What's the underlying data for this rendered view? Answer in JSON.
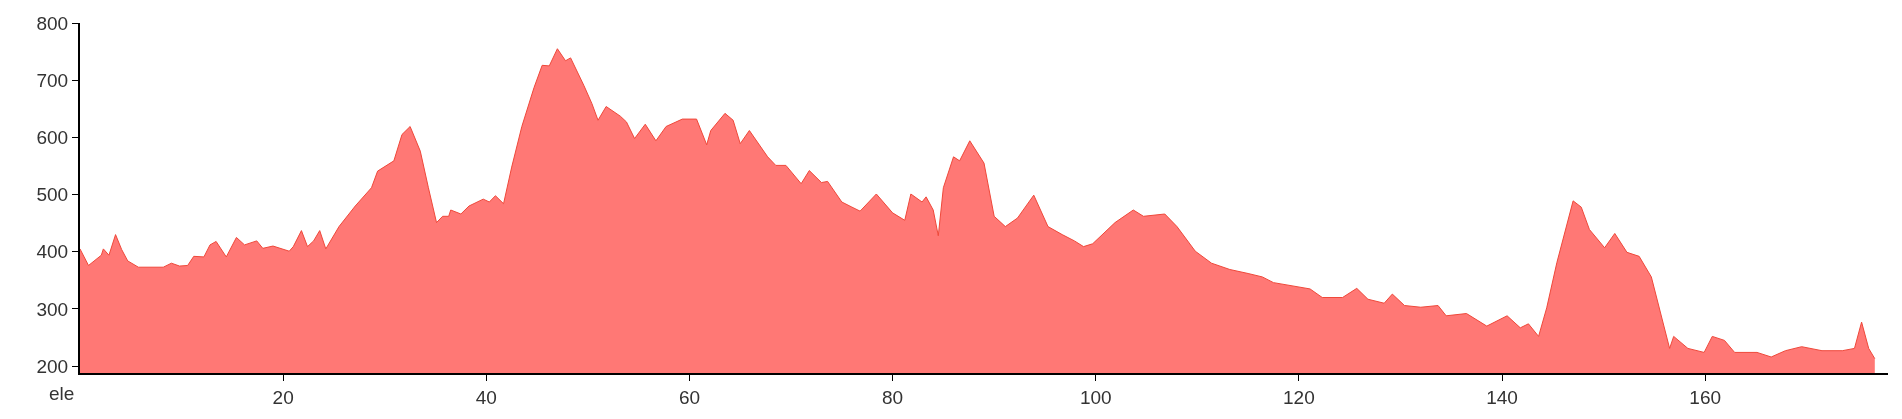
{
  "chart_data": {
    "type": "area",
    "ylabel": "ele",
    "x": [
      0,
      0.84,
      2.1,
      2.3,
      2.85,
      3.5,
      4.1,
      4.7,
      5.75,
      8.2,
      9,
      9.8,
      10.6,
      11.2,
      12.2,
      12.8,
      13.4,
      14.4,
      15.4,
      16.2,
      17.4,
      18,
      19,
      20.6,
      21,
      21.8,
      22.4,
      23,
      23.6,
      24.2,
      25.5,
      27.1,
      28.7,
      29.3,
      30.9,
      31.7,
      32.5,
      33.5,
      34.3,
      35.1,
      35.7,
      36.3,
      36.5,
      37.5,
      38.3,
      39.7,
      40.3,
      40.9,
      41.7,
      42.5,
      43.5,
      44.7,
      45.5,
      46.2,
      47,
      47.8,
      48.3,
      49.6,
      50.4,
      51,
      51.8,
      53.2,
      53.8,
      54.6,
      55.65,
      56.7,
      57.7,
      59.3,
      60.7,
      61.7,
      62.1,
      63.5,
      64.3,
      65,
      65.9,
      67.7,
      68.5,
      69.5,
      71,
      71.8,
      73,
      73.6,
      75,
      76,
      76.8,
      78.4,
      80,
      81.2,
      81.8,
      82.9,
      83.3,
      84,
      84.5,
      85,
      86,
      86.6,
      87.6,
      89,
      90,
      91.1,
      92.3,
      93.9,
      95.3,
      96.7,
      97.9,
      98.8,
      99.7,
      101.9,
      103.7,
      104.7,
      106.8,
      108,
      109.8,
      111.4,
      113.2,
      115,
      116.4,
      117.5,
      121.1,
      122.3,
      124.3,
      125.7,
      126.8,
      128.4,
      129.2,
      130.4,
      132,
      133.7,
      134.5,
      136.5,
      138.5,
      140.5,
      141.8,
      142.6,
      143.6,
      144.4,
      145.4,
      147,
      147.8,
      148.6,
      150.1,
      151.1,
      152.3,
      153.5,
      154.7,
      156.5,
      156.9,
      158.3,
      159.9,
      160.7,
      161.9,
      162.9,
      165.1,
      166.5,
      167.9,
      169.5,
      171.5,
      173.5,
      174.7,
      175.4,
      176.1,
      176.7
    ],
    "series": [
      {
        "color": "#ff7875",
        "values": [
          405,
          376,
          394,
          405,
          394,
          430,
          404,
          384,
          373,
          373,
          380,
          375,
          376,
          392,
          391,
          412,
          418,
          391,
          425,
          412,
          419,
          406,
          410,
          401,
          409,
          437,
          409,
          419,
          437,
          405,
          444,
          480,
          512,
          541,
          559,
          605,
          619,
          576,
          512,
          451,
          462,
          462,
          473,
          466,
          480,
          492,
          487,
          498,
          484,
          548,
          619,
          687,
          726,
          725,
          755,
          734,
          739,
          691,
          659,
          630,
          654,
          637,
          627,
          598,
          623,
          594,
          619,
          632,
          632,
          587,
          612,
          642,
          630,
          589,
          612,
          566,
          551,
          551,
          519,
          542,
          521,
          523,
          487,
          478,
          471,
          501,
          468,
          455,
          501,
          487,
          496,
          473,
          428,
          512,
          566,
          559,
          594,
          555,
          462,
          444,
          459,
          499,
          444,
          430,
          419,
          409,
          414,
          451,
          473,
          462,
          466,
          444,
          401,
          380,
          369,
          362,
          356,
          346,
          335,
          320,
          320,
          336,
          317,
          310,
          326,
          306,
          303,
          306,
          288,
          292,
          270,
          288,
          267,
          274,
          252,
          302,
          381,
          489,
          478,
          439,
          407,
          432,
          399,
          392,
          356,
          231,
          252,
          231,
          224,
          252,
          245,
          224,
          224,
          216,
          227,
          234,
          227,
          227,
          231,
          277,
          231,
          213
        ]
      }
    ],
    "xlim": [
      0,
      178
    ],
    "xticks": [
      20,
      40,
      60,
      80,
      100,
      120,
      140,
      160
    ],
    "ylim": [
      188,
      800
    ],
    "yticks": [
      200,
      300,
      400,
      500,
      600,
      700,
      800
    ]
  }
}
